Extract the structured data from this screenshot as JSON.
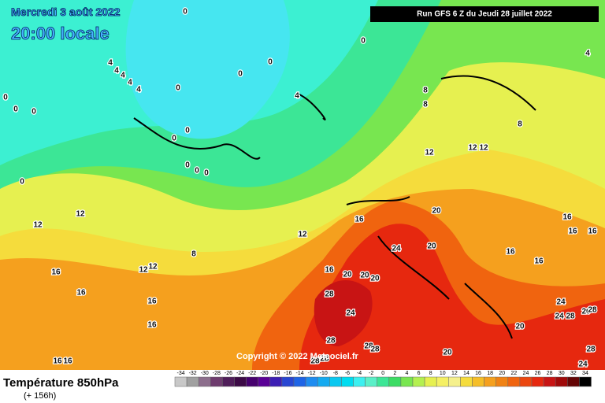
{
  "header": {
    "date": "Mercredi 3 août 2022",
    "time": "20:00 locale",
    "run": "Run GFS 6 Z du Jeudi 28 juillet 2022"
  },
  "footer": {
    "title": "Température 850hPa",
    "lead": "(+ 156h)",
    "copyright": "Copyright © 2022 Meteociel.fr"
  },
  "legend": {
    "ticks": [
      -34,
      -32,
      -30,
      -28,
      -26,
      -24,
      -22,
      -20,
      -18,
      -16,
      -14,
      -12,
      -10,
      -8,
      -6,
      -4,
      -2,
      0,
      2,
      4,
      6,
      8,
      10,
      12,
      14,
      16,
      18,
      20,
      22,
      24,
      26,
      28,
      30,
      32,
      34
    ],
    "colors": [
      "#c8c8c8",
      "#a0a0a0",
      "#8c6e8c",
      "#6e3c6e",
      "#501e5a",
      "#3c0a46",
      "#46006e",
      "#5a0096",
      "#3c1eb4",
      "#2846d2",
      "#1e64e6",
      "#1e8cf0",
      "#14aaf0",
      "#0ac8f0",
      "#00dcf0",
      "#3cf0f0",
      "#5af0c8",
      "#3ce696",
      "#3cdc64",
      "#78e650",
      "#b4f050",
      "#e6f050",
      "#f5f064",
      "#f5f08c",
      "#f5dc3c",
      "#f5be28",
      "#f5a01e",
      "#f08214",
      "#f0640f",
      "#eb460f",
      "#e6280f",
      "#c81414",
      "#a00a0a",
      "#640505",
      "#000000"
    ]
  },
  "contour_labels": [
    0,
    0,
    4,
    4,
    4,
    4,
    4,
    0,
    0,
    0,
    4,
    0,
    0,
    0,
    0,
    0,
    0,
    0,
    0,
    0,
    8,
    8,
    8,
    4,
    12,
    12,
    12,
    12,
    12,
    12,
    8,
    12,
    12,
    16,
    20,
    16,
    16,
    16,
    16,
    16,
    24,
    20,
    16,
    20,
    20,
    20,
    16,
    16,
    16,
    28,
    24,
    16,
    24,
    20,
    24,
    28,
    20,
    28,
    28,
    28,
    28,
    20,
    28,
    28,
    28,
    24,
    16,
    16
  ]
}
